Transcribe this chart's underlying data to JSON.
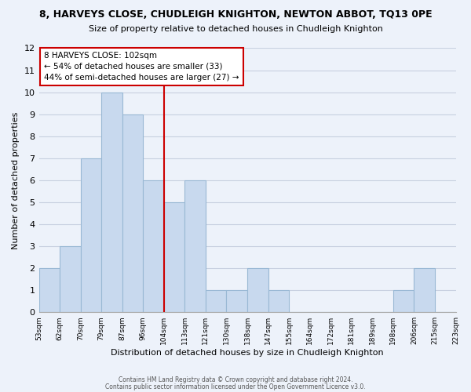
{
  "title1": "8, HARVEYS CLOSE, CHUDLEIGH KNIGHTON, NEWTON ABBOT, TQ13 0PE",
  "title2": "Size of property relative to detached houses in Chudleigh Knighton",
  "xlabel": "Distribution of detached houses by size in Chudleigh Knighton",
  "ylabel": "Number of detached properties",
  "footer1": "Contains HM Land Registry data © Crown copyright and database right 2024.",
  "footer2": "Contains public sector information licensed under the Open Government Licence v3.0.",
  "bin_labels": [
    "53sqm",
    "62sqm",
    "70sqm",
    "79sqm",
    "87sqm",
    "96sqm",
    "104sqm",
    "113sqm",
    "121sqm",
    "130sqm",
    "138sqm",
    "147sqm",
    "155sqm",
    "164sqm",
    "172sqm",
    "181sqm",
    "189sqm",
    "198sqm",
    "206sqm",
    "215sqm",
    "223sqm"
  ],
  "bar_heights": [
    2,
    3,
    7,
    10,
    9,
    6,
    5,
    6,
    1,
    1,
    2,
    1,
    0,
    0,
    0,
    0,
    0,
    1,
    2,
    0
  ],
  "bar_color": "#c8d9ee",
  "bar_edge_color": "#99b8d4",
  "vline_x": 6,
  "vline_color": "#cc0000",
  "annotation_title": "8 HARVEYS CLOSE: 102sqm",
  "annotation_line1": "← 54% of detached houses are smaller (33)",
  "annotation_line2": "44% of semi-detached houses are larger (27) →",
  "annotation_box_color": "#ffffff",
  "annotation_box_edge": "#cc0000",
  "ylim": [
    0,
    12
  ],
  "yticks": [
    0,
    1,
    2,
    3,
    4,
    5,
    6,
    7,
    8,
    9,
    10,
    11,
    12
  ],
  "grid_color": "#c8d0e0",
  "background_color": "#edf2fa"
}
